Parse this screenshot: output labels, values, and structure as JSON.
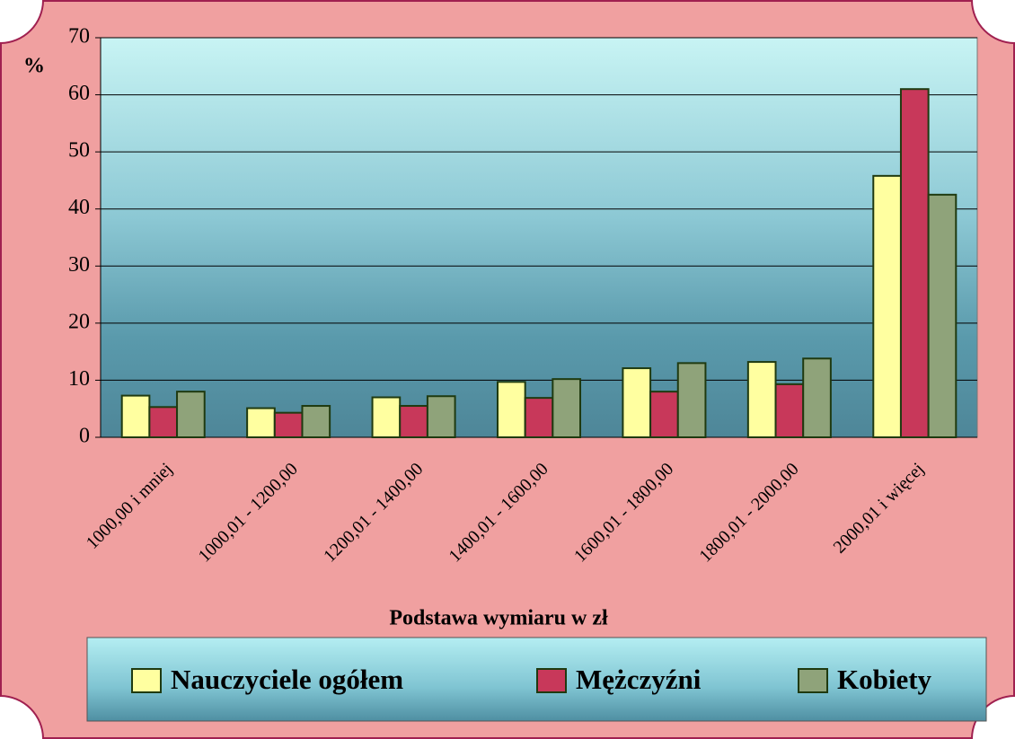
{
  "chart_data": {
    "type": "bar",
    "y_label": "%",
    "x_label": "Podstawa wymiaru w zł",
    "categories": [
      "1000,00 i mniej",
      "1000,01 - 1200,00",
      "1200,01 - 1400,00",
      "1400,01 - 1600,00",
      "1600,01 - 1800,00",
      "1800,01 - 2000,00",
      "2000,01 i więcej"
    ],
    "series": [
      {
        "name": "Nauczyciele ogółem",
        "color": "#ffffa0",
        "values": [
          7.3,
          5.1,
          7.0,
          9.7,
          12.1,
          13.2,
          45.8
        ]
      },
      {
        "name": "Mężczyźni",
        "color": "#c8385a",
        "values": [
          5.3,
          4.3,
          5.5,
          6.9,
          8.0,
          9.3,
          61.0
        ]
      },
      {
        "name": "Kobiety",
        "color": "#8fa37a",
        "values": [
          8.0,
          5.5,
          7.2,
          10.2,
          13.0,
          13.8,
          42.5
        ]
      }
    ],
    "ylim": [
      0,
      70
    ],
    "yticks": [
      0,
      10,
      20,
      30,
      40,
      50,
      60,
      70
    ],
    "grid": true,
    "legend": "bottom"
  }
}
